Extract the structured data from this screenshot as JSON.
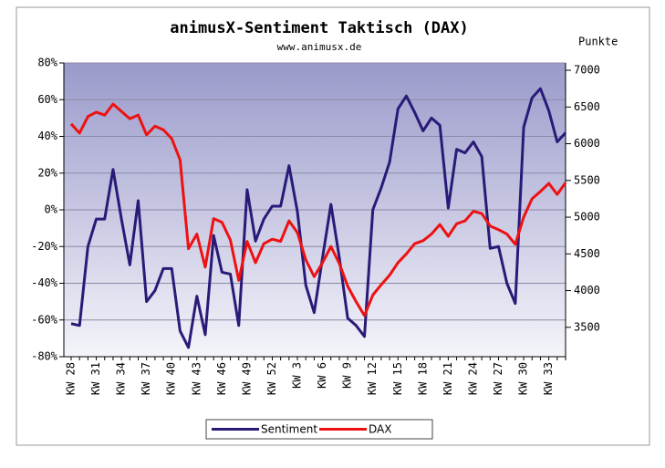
{
  "chart_data": {
    "type": "line",
    "title": "animusX-Sentiment Taktisch (DAX)",
    "subtitle": "www.animusx.de",
    "y2_label": "Punkte",
    "categories": [
      "KW 28",
      null,
      null,
      "KW 31",
      null,
      null,
      "KW 34",
      null,
      null,
      "KW 37",
      null,
      null,
      "KW 40",
      null,
      null,
      "KW 43",
      null,
      null,
      "KW 46",
      null,
      null,
      "KW 49",
      null,
      null,
      "KW 52",
      null,
      null,
      "KW 3",
      null,
      null,
      "KW 6",
      null,
      null,
      "KW 9",
      null,
      null,
      "KW 12",
      null,
      null,
      "KW 15",
      null,
      null,
      "KW 18",
      null,
      null,
      "KW 21",
      null,
      null,
      "KW 24",
      null,
      null,
      "KW 27",
      null,
      null,
      "KW 30",
      null,
      null,
      "KW 33",
      null,
      null
    ],
    "series": [
      {
        "name": "Sentiment",
        "color": "#2a1a78",
        "axis": "y",
        "values": [
          -62,
          -63,
          -20,
          -5,
          -5,
          22,
          -5,
          -30,
          5,
          -50,
          -44,
          -32,
          -32,
          -66,
          -75,
          -47,
          -68,
          -14,
          -34,
          -35,
          -63,
          11,
          -17,
          -5,
          2,
          2,
          24,
          -1,
          -41,
          -56,
          -26,
          3,
          -26,
          -59,
          -63,
          -69,
          0,
          12,
          26,
          55,
          62,
          53,
          43,
          50,
          46,
          1,
          33,
          31,
          37,
          29,
          -21,
          -20,
          -40,
          -51,
          45,
          61,
          66,
          54,
          37,
          42
        ]
      },
      {
        "name": "DAX",
        "color": "#ee1111",
        "axis": "y2",
        "values": [
          6270,
          6145,
          6370,
          6430,
          6390,
          6540,
          6440,
          6340,
          6390,
          6120,
          6240,
          6190,
          6070,
          5780,
          4570,
          4770,
          4320,
          4980,
          4930,
          4690,
          4140,
          4670,
          4380,
          4640,
          4700,
          4670,
          4950,
          4790,
          4420,
          4190,
          4380,
          4600,
          4370,
          4060,
          3850,
          3660,
          3940,
          4080,
          4210,
          4380,
          4500,
          4640,
          4680,
          4770,
          4900,
          4740,
          4910,
          4950,
          5080,
          5050,
          4880,
          4830,
          4770,
          4630,
          5000,
          5250,
          5350,
          5460,
          5310,
          5470
        ]
      }
    ],
    "ylim": [
      -80,
      80
    ],
    "yticks": [
      {
        "value": -80,
        "label": "-80%"
      },
      {
        "value": -60,
        "label": "-60%"
      },
      {
        "value": -40,
        "label": "-40%"
      },
      {
        "value": -20,
        "label": "-20%"
      },
      {
        "value": 0,
        "label": "0%"
      },
      {
        "value": 20,
        "label": "20%"
      },
      {
        "value": 40,
        "label": "40%"
      },
      {
        "value": 60,
        "label": "60%"
      },
      {
        "value": 80,
        "label": "80%"
      }
    ],
    "y2lim": [
      3100,
      7100
    ],
    "y2ticks": [
      3500,
      4000,
      4500,
      5000,
      5500,
      6000,
      6500,
      7000
    ],
    "grid": true
  }
}
